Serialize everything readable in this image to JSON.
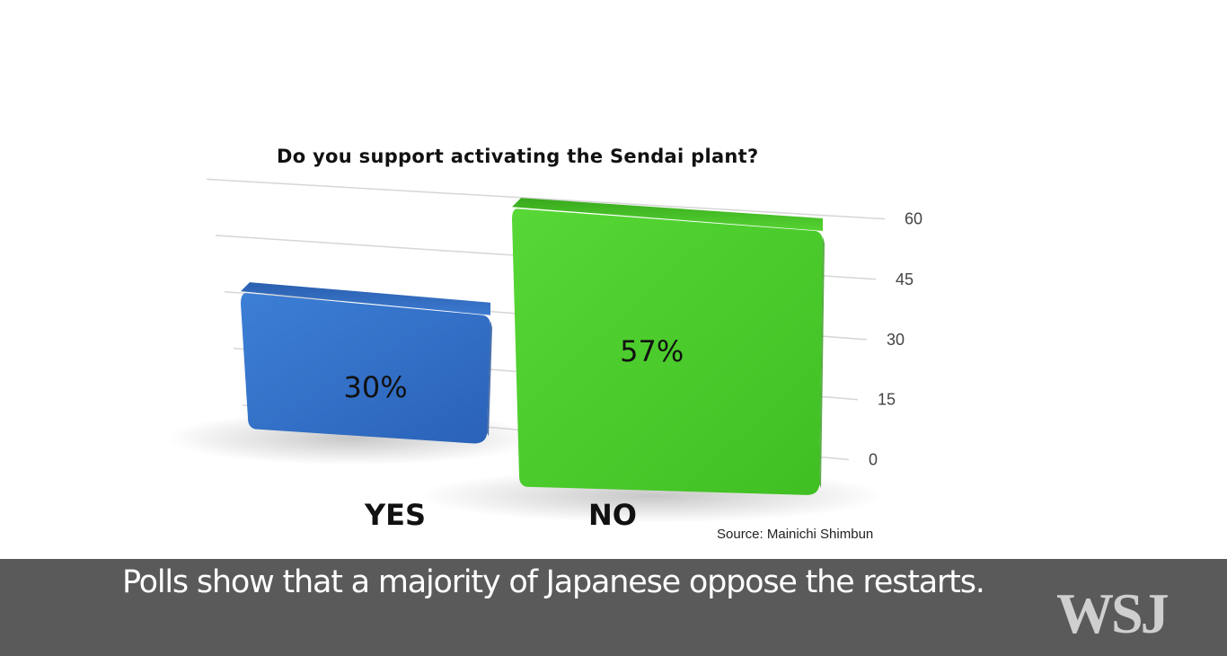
{
  "chart_data": {
    "type": "bar",
    "title": "Do you support activating the Sendai plant?",
    "categories": [
      "YES",
      "NO"
    ],
    "values": [
      30,
      57
    ],
    "value_labels": [
      "30%",
      "57%"
    ],
    "yticks": [
      "0",
      "15",
      "30",
      "45",
      "60"
    ],
    "ylim": [
      0,
      60
    ],
    "grid": true,
    "colors": [
      "#2f6fc9",
      "#4ccf2a"
    ],
    "source": "Source: Mainichi Shimbun"
  },
  "caption": {
    "text": "Polls show that a majority of Japanese oppose the restarts.",
    "logo": "WSJ"
  }
}
